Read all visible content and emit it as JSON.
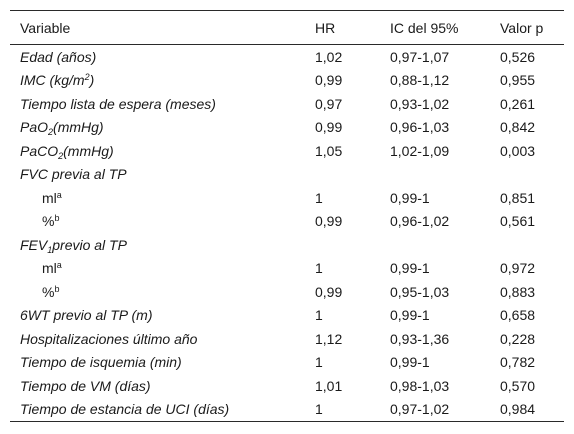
{
  "table": {
    "headers": {
      "variable": "Variable",
      "hr": "HR",
      "ic": "IC del 95%",
      "p": "Valor p"
    },
    "rows": [
      {
        "label": "Edad (años)",
        "hr": "1,02",
        "ic": "0,97-1,07",
        "p": "0,526"
      },
      {
        "label_pre": "IMC (kg/m",
        "label_sup": "2",
        "label_post": ")",
        "hr": "0,99",
        "ic": "0,88-1,12",
        "p": "0,955"
      },
      {
        "label": "Tiempo lista de espera (meses)",
        "hr": "0,97",
        "ic": "0,93-1,02",
        "p": "0,261"
      },
      {
        "label_pre": "PaO",
        "label_sub": "2",
        "label_post": "(mmHg)",
        "hr": "0,99",
        "ic": "0,96-1,03",
        "p": "0,842"
      },
      {
        "label_pre": "PaCO",
        "label_sub": "2",
        "label_post": "(mmHg)",
        "hr": "1,05",
        "ic": "1,02-1,09",
        "p": "0,003"
      },
      {
        "label": "FVC previa al TP",
        "hr": "",
        "ic": "",
        "p": ""
      },
      {
        "label_pre": "ml",
        "label_sup": "a",
        "hr": "1",
        "ic": "0,99-1",
        "p": "0,851"
      },
      {
        "label_pre": "%",
        "label_sup": "b",
        "hr": "0,99",
        "ic": "0,96-1,02",
        "p": "0,561"
      },
      {
        "label_pre": "FEV",
        "label_sub": "1",
        "label_post": "previo al TP",
        "hr": "",
        "ic": "",
        "p": ""
      },
      {
        "label_pre": "ml",
        "label_sup": "a",
        "hr": "1",
        "ic": "0,99-1",
        "p": "0,972"
      },
      {
        "label_pre": "%",
        "label_sup": "b",
        "hr": "0,99",
        "ic": "0,95-1,03",
        "p": "0,883"
      },
      {
        "label": "6WT previo al TP (m)",
        "hr": "1",
        "ic": "0,99-1",
        "p": "0,658"
      },
      {
        "label": "Hospitalizaciones último año",
        "hr": "1,12",
        "ic": "0,93-1,36",
        "p": "0,228"
      },
      {
        "label": "Tiempo de isquemia (min)",
        "hr": "1",
        "ic": "0,99-1",
        "p": "0,782"
      },
      {
        "label": "Tiempo de VM (días)",
        "hr": "1,01",
        "ic": "0,98-1,03",
        "p": "0,570"
      },
      {
        "label": "Tiempo de estancia de UCI (días)",
        "hr": "1",
        "ic": "0,97-1,02",
        "p": "0,984"
      }
    ]
  }
}
